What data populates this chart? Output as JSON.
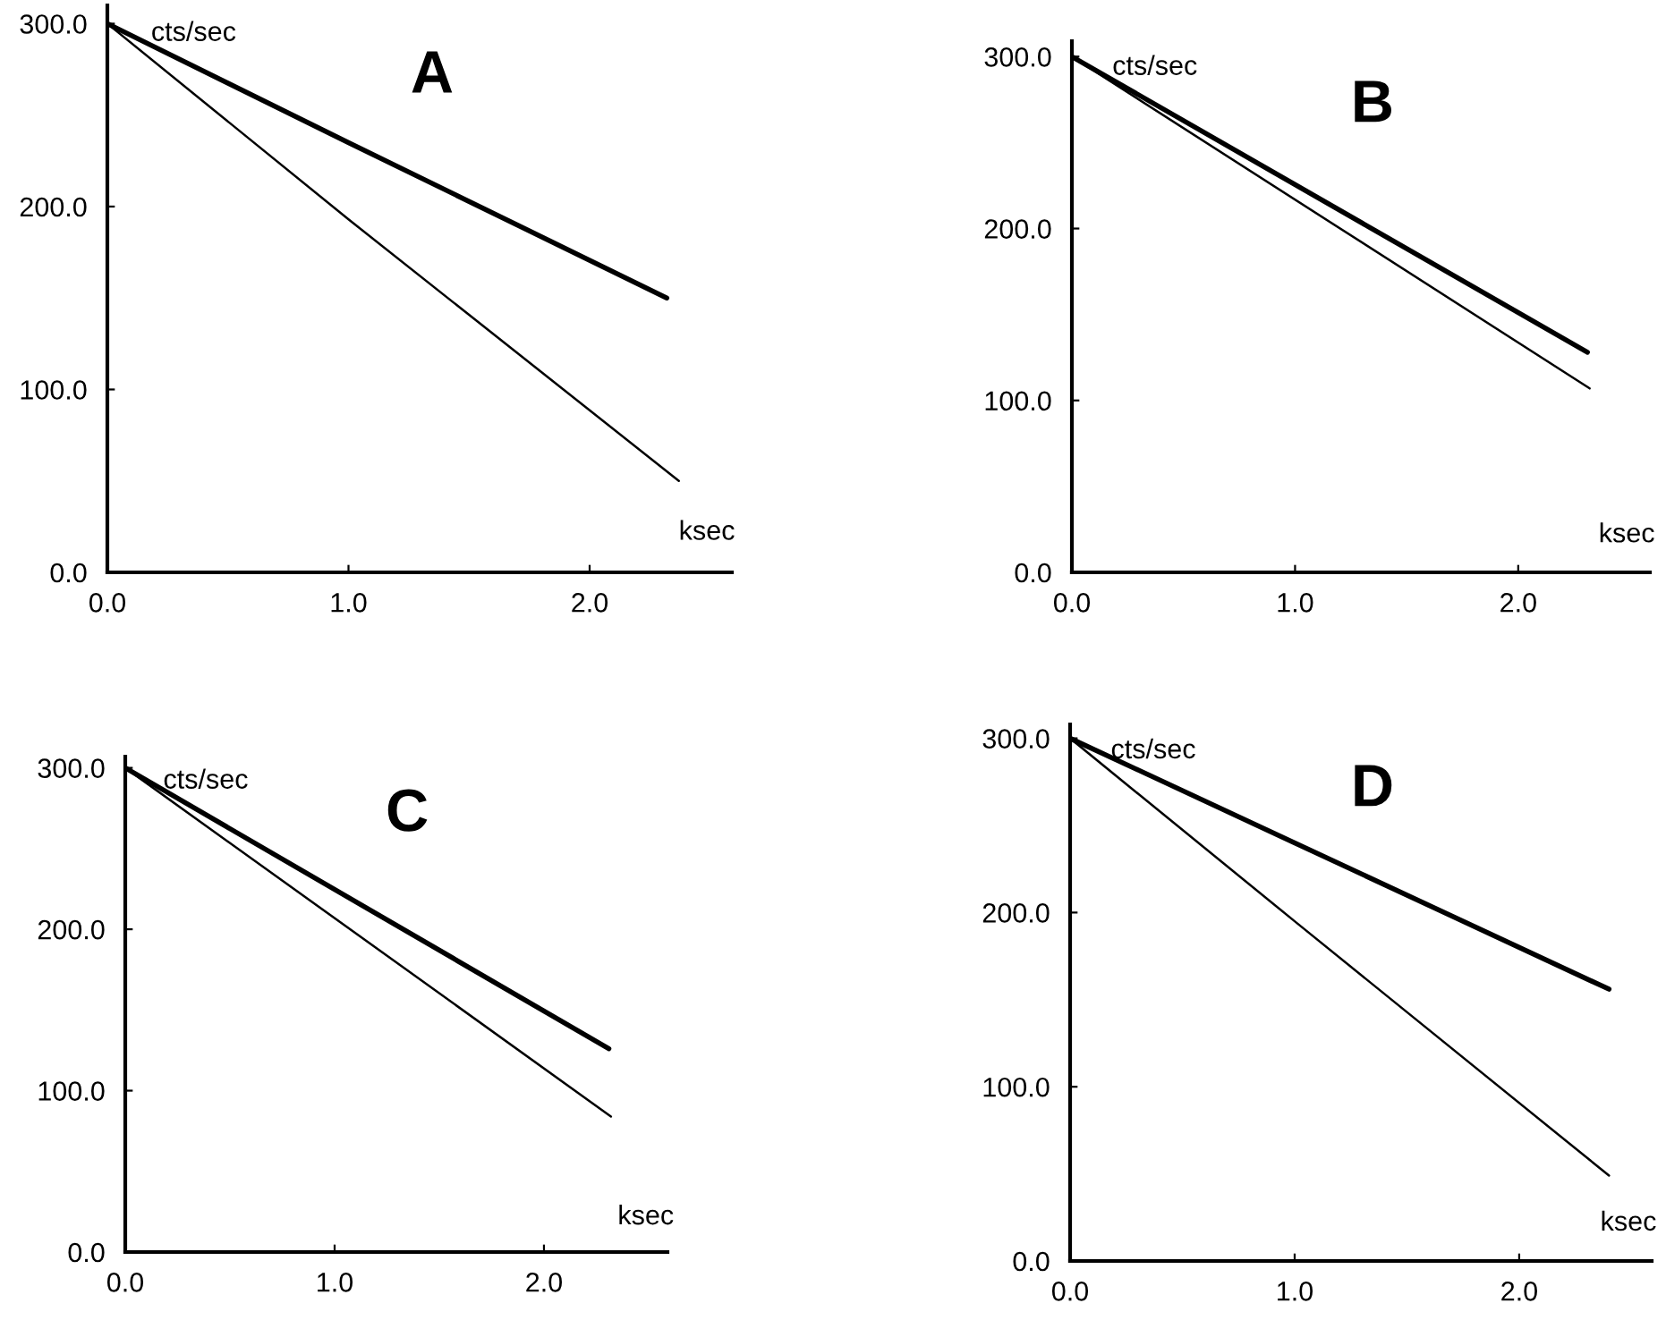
{
  "chart_data": [
    {
      "type": "line",
      "title": "A",
      "xlabel": "ksec",
      "ylabel": "cts/sec",
      "xlim": [
        0,
        2.59
      ],
      "ylim": [
        0,
        310
      ],
      "xticks": [
        {
          "value": 0,
          "label": "0.0"
        },
        {
          "value": 1,
          "label": "1.0"
        },
        {
          "value": 2,
          "label": "2.0"
        }
      ],
      "yticks": [
        {
          "value": 0,
          "label": "0.0"
        },
        {
          "value": 100,
          "label": "100.0"
        },
        {
          "value": 200,
          "label": "200.0"
        },
        {
          "value": 300,
          "label": "300.0"
        }
      ],
      "grid": false,
      "legend": false,
      "series": [
        {
          "color": "#000000",
          "x": [
            0,
            1.0,
            2.32
          ],
          "values": [
            300,
            235,
            150
          ]
        },
        {
          "color": "#000000",
          "x": [
            0,
            1.0,
            2.37
          ],
          "values": [
            300,
            193,
            50
          ]
        }
      ]
    },
    {
      "type": "line",
      "title": "B",
      "xlabel": "ksec",
      "ylabel": "cts/sec",
      "xlim": [
        0,
        2.59
      ],
      "ylim": [
        0,
        309
      ],
      "xticks": [
        {
          "value": 0,
          "label": "0.0"
        },
        {
          "value": 1,
          "label": "1.0"
        },
        {
          "value": 2,
          "label": "2.0"
        }
      ],
      "yticks": [
        {
          "value": 0,
          "label": "0.0"
        },
        {
          "value": 100,
          "label": "100.0"
        },
        {
          "value": 200,
          "label": "200.0"
        },
        {
          "value": 300,
          "label": "300.0"
        }
      ],
      "grid": false,
      "legend": false,
      "series": [
        {
          "color": "#000000",
          "x": [
            0,
            2.31
          ],
          "values": [
            300,
            128
          ]
        },
        {
          "color": "#000000",
          "x": [
            0,
            2.32
          ],
          "values": [
            300,
            107
          ]
        }
      ]
    },
    {
      "type": "line",
      "title": "C",
      "xlabel": "ksec",
      "ylabel": "cts/sec",
      "xlim": [
        0,
        2.59
      ],
      "ylim": [
        0,
        307
      ],
      "xticks": [
        {
          "value": 0,
          "label": "0.0"
        },
        {
          "value": 1,
          "label": "1.0"
        },
        {
          "value": 2,
          "label": "2.0"
        }
      ],
      "yticks": [
        {
          "value": 0,
          "label": "0.0"
        },
        {
          "value": 100,
          "label": "100.0"
        },
        {
          "value": 200,
          "label": "200.0"
        },
        {
          "value": 300,
          "label": "300.0"
        }
      ],
      "grid": false,
      "legend": false,
      "series": [
        {
          "color": "#000000",
          "x": [
            0,
            2.31
          ],
          "values": [
            300,
            126
          ]
        },
        {
          "color": "#000000",
          "x": [
            0,
            2.32
          ],
          "values": [
            300,
            84
          ]
        }
      ]
    },
    {
      "type": "line",
      "title": "D",
      "xlabel": "ksec",
      "ylabel": "cts/sec",
      "xlim": [
        0,
        2.59
      ],
      "ylim": [
        0,
        308
      ],
      "xticks": [
        {
          "value": 0,
          "label": "0.0"
        },
        {
          "value": 1,
          "label": "1.0"
        },
        {
          "value": 2,
          "label": "2.0"
        }
      ],
      "yticks": [
        {
          "value": 0,
          "label": "0.0"
        },
        {
          "value": 100,
          "label": "100.0"
        },
        {
          "value": 200,
          "label": "200.0"
        },
        {
          "value": 300,
          "label": "300.0"
        }
      ],
      "grid": false,
      "legend": false,
      "series": [
        {
          "color": "#000000",
          "x": [
            0,
            1.0,
            2.4
          ],
          "values": [
            300,
            240,
            156
          ]
        },
        {
          "color": "#000000",
          "x": [
            0,
            1.0,
            2.4
          ],
          "values": [
            300,
            195,
            49
          ]
        }
      ]
    }
  ]
}
